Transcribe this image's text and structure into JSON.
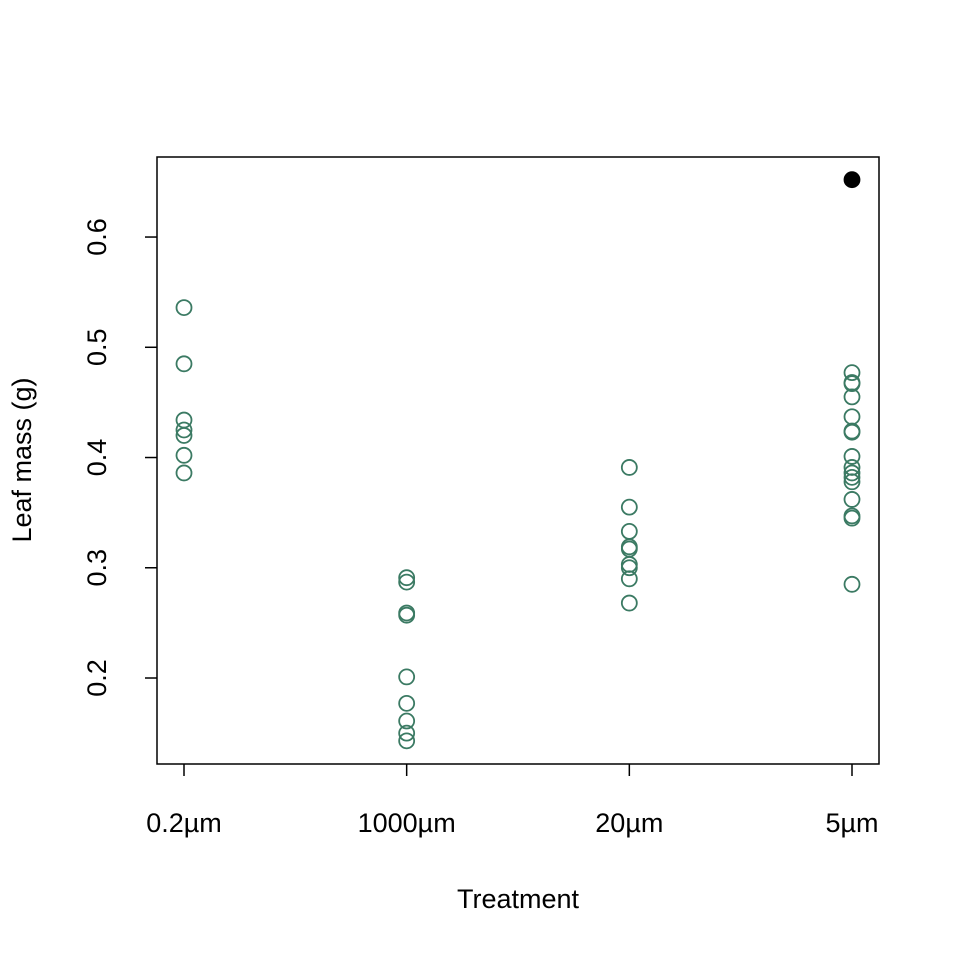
{
  "chart_data": {
    "type": "strip",
    "x_label": "Treatment",
    "y_label": "Leaf mass (g)",
    "categories": [
      "0.2µm",
      "1000µm",
      "20µm",
      "5µm"
    ],
    "series": [
      {
        "color": "#3b7a63",
        "filled": false,
        "values": [
          [
            0.536,
            0.485,
            0.434,
            0.425,
            0.42,
            0.402,
            0.386
          ],
          [
            0.291,
            0.287,
            0.259,
            0.257,
            0.201,
            0.177,
            0.161,
            0.15,
            0.143
          ],
          [
            0.391,
            0.355,
            0.333,
            0.319,
            0.317,
            0.303,
            0.3,
            0.29,
            0.268
          ],
          [
            0.477,
            0.468,
            0.467,
            0.455,
            0.437,
            0.424,
            0.423,
            0.401,
            0.391,
            0.386,
            0.382,
            0.378,
            0.362,
            0.347,
            0.345,
            0.285
          ]
        ]
      },
      {
        "color": "#000000",
        "filled": true,
        "values": [
          [],
          [],
          [],
          [
            0.652
          ]
        ]
      }
    ],
    "ylim": [
      0.122,
      0.6726
    ],
    "yticks": [
      0.2,
      0.3,
      0.4,
      0.5,
      0.6
    ]
  }
}
